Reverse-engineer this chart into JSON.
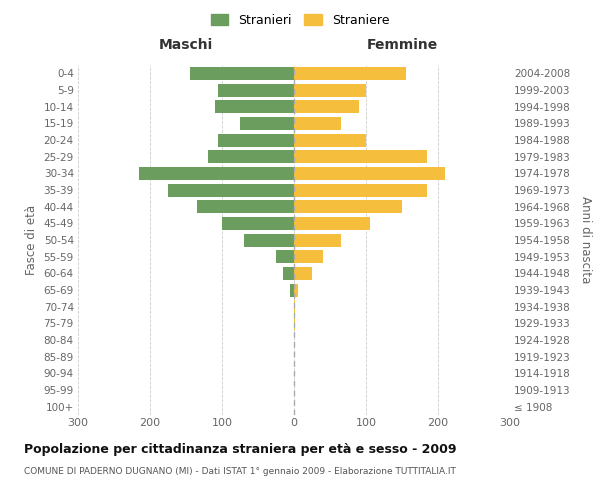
{
  "age_groups": [
    "100+",
    "95-99",
    "90-94",
    "85-89",
    "80-84",
    "75-79",
    "70-74",
    "65-69",
    "60-64",
    "55-59",
    "50-54",
    "45-49",
    "40-44",
    "35-39",
    "30-34",
    "25-29",
    "20-24",
    "15-19",
    "10-14",
    "5-9",
    "0-4"
  ],
  "birth_years": [
    "≤ 1908",
    "1909-1913",
    "1914-1918",
    "1919-1923",
    "1924-1928",
    "1929-1933",
    "1934-1938",
    "1939-1943",
    "1944-1948",
    "1949-1953",
    "1954-1958",
    "1959-1963",
    "1964-1968",
    "1969-1973",
    "1974-1978",
    "1979-1983",
    "1984-1988",
    "1989-1993",
    "1994-1998",
    "1999-2003",
    "2004-2008"
  ],
  "maschi": [
    0,
    0,
    0,
    0,
    0,
    0,
    0,
    5,
    15,
    25,
    70,
    100,
    135,
    175,
    215,
    120,
    105,
    75,
    110,
    105,
    145
  ],
  "femmine": [
    0,
    0,
    0,
    0,
    0,
    2,
    2,
    5,
    25,
    40,
    65,
    105,
    150,
    185,
    210,
    185,
    100,
    65,
    90,
    100,
    155
  ],
  "color_maschi": "#6b9e5e",
  "color_femmine": "#f5be3c",
  "title": "Popolazione per cittadinanza straniera per età e sesso - 2009",
  "subtitle": "COMUNE DI PADERNO DUGNANO (MI) - Dati ISTAT 1° gennaio 2009 - Elaborazione TUTTITALIA.IT",
  "label_maschi": "Stranieri",
  "label_femmine": "Straniere",
  "header_left": "Maschi",
  "header_right": "Femmine",
  "ylabel_left": "Fasce di età",
  "ylabel_right": "Anni di nascita",
  "xlim": 300,
  "background_color": "#ffffff",
  "grid_color": "#cccccc",
  "bar_height": 0.78
}
